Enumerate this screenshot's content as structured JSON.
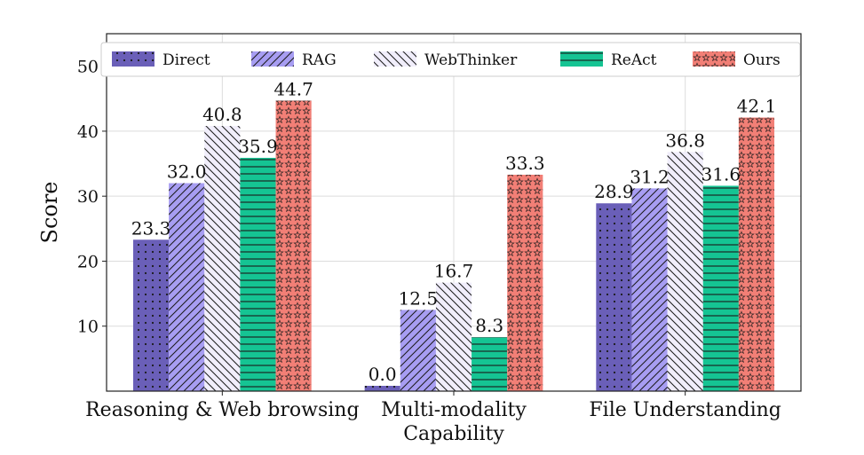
{
  "chart_data": {
    "type": "bar",
    "title": "",
    "xlabel": "",
    "ylabel": "Score",
    "ylim": [
      0,
      55
    ],
    "yticks": [
      "10",
      "20",
      "30",
      "40",
      "50"
    ],
    "grid": true,
    "legend_position": "top",
    "categories": [
      [
        "Reasoning & Web browsing"
      ],
      [
        "Multi-modality",
        "Capability"
      ],
      [
        "File Understanding"
      ]
    ],
    "series": [
      {
        "name": "Direct",
        "color": "#6a5fb8",
        "pattern": "dots",
        "values": [
          23.3,
          0.0,
          28.9
        ],
        "labels": [
          "23.3",
          "0.0",
          "28.9"
        ]
      },
      {
        "name": "RAG",
        "color": "#a79df2",
        "pattern": "diagonal",
        "values": [
          32.0,
          12.5,
          31.2
        ],
        "labels": [
          "32.0",
          "12.5",
          "31.2"
        ]
      },
      {
        "name": "WebThinker",
        "color": "#f1eefb",
        "pattern": "backdiagonal",
        "values": [
          40.8,
          16.7,
          36.8
        ],
        "labels": [
          "40.8",
          "16.7",
          "36.8"
        ]
      },
      {
        "name": "ReAct",
        "color": "#15c493",
        "pattern": "horizontal",
        "values": [
          35.9,
          8.3,
          31.6
        ],
        "labels": [
          "35.9",
          "8.3",
          "31.6"
        ]
      },
      {
        "name": "Ours",
        "color": "#f27f76",
        "pattern": "stars",
        "values": [
          44.7,
          33.3,
          42.1
        ],
        "labels": [
          "44.7",
          "33.3",
          "42.1"
        ]
      }
    ]
  }
}
